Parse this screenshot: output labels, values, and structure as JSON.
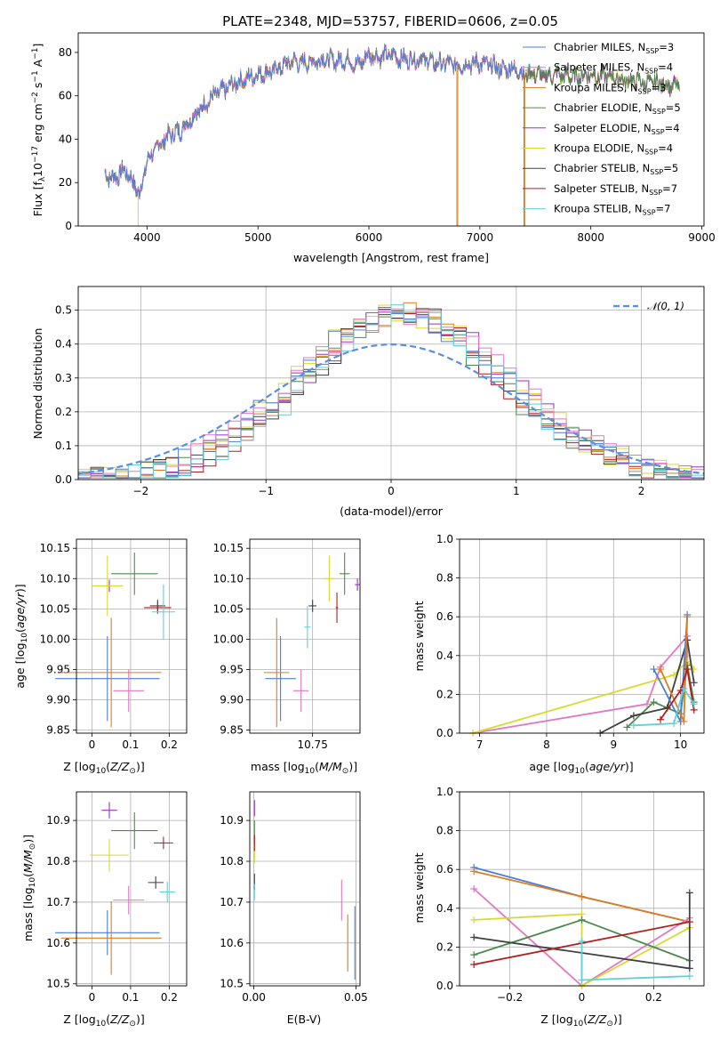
{
  "title": "PLATE=2348, MJD=53757, FIBERID=0606, z=0.05",
  "colors": {
    "chabrier_miles": "#4a7fd6",
    "salpeter_miles": "#e377c2",
    "kroupa_miles": "#e07b1f",
    "chabrier_elodie": "#4e8a4e",
    "salpeter_elodie": "#9b30c8",
    "kroupa_elodie": "#d9d934",
    "chabrier_stelib": "#404040",
    "salpeter_stelib": "#b21d1d",
    "kroupa_stelib": "#5fd0d8",
    "gauss": "#5b8ee0"
  },
  "legend": [
    {
      "key": "chabrier_miles",
      "imf": "Chabrier",
      "lib": "MILES",
      "n": "3"
    },
    {
      "key": "salpeter_miles",
      "imf": "Salpeter",
      "lib": "MILES",
      "n": "4"
    },
    {
      "key": "kroupa_miles",
      "imf": "Kroupa",
      "lib": "MILES",
      "n": "3"
    },
    {
      "key": "chabrier_elodie",
      "imf": "Chabrier",
      "lib": "ELODIE",
      "n": "5"
    },
    {
      "key": "salpeter_elodie",
      "imf": "Salpeter",
      "lib": "ELODIE",
      "n": "4"
    },
    {
      "key": "kroupa_elodie",
      "imf": "Kroupa",
      "lib": "ELODIE",
      "n": "4"
    },
    {
      "key": "chabrier_stelib",
      "imf": "Chabrier",
      "lib": "STELIB",
      "n": "5"
    },
    {
      "key": "salpeter_stelib",
      "imf": "Salpeter",
      "lib": "STELIB",
      "n": "7"
    },
    {
      "key": "kroupa_stelib",
      "imf": "Kroupa",
      "lib": "STELIB",
      "n": "7"
    }
  ],
  "chart_data": [
    {
      "id": "spectrum",
      "type": "line",
      "xlabel": "wavelength [Angstrom, rest frame]",
      "ylabel": "Flux [f_λ 10^-17 erg cm^-2 s^-1 A^-1]",
      "xlim": [
        3380,
        9020
      ],
      "ylim": [
        0,
        89
      ],
      "xticks": [
        4000,
        5000,
        6000,
        7000,
        8000,
        9000
      ],
      "yticks": [
        0,
        20,
        40,
        60,
        80
      ],
      "grid": false,
      "legend_placement": "upper-right",
      "x": [
        3620,
        3700,
        3800,
        3900,
        3930,
        4000,
        4100,
        4200,
        4300,
        4400,
        4500,
        4600,
        4700,
        4800,
        4900,
        5000,
        5100,
        5200,
        5300,
        5400,
        5500,
        5600,
        5700,
        5800,
        5900,
        6000,
        6100,
        6200,
        6300,
        6400,
        6500,
        6600,
        6700,
        6800,
        6900,
        7000,
        7100,
        7200,
        7300,
        7400,
        7500,
        7600,
        7700,
        7800,
        7900,
        8000,
        8100,
        8200,
        8300,
        8400,
        8500,
        8600,
        8700,
        8800
      ],
      "flux": [
        24,
        22,
        26,
        18,
        14,
        30,
        37,
        42,
        44,
        50,
        55,
        60,
        63,
        66,
        68,
        70,
        71,
        73,
        76,
        75,
        76,
        77,
        76,
        77,
        74,
        79,
        78,
        79,
        77,
        77,
        77,
        75,
        75,
        74,
        75,
        75,
        74,
        72,
        73,
        70,
        70,
        69,
        70,
        69,
        69,
        70,
        69,
        69,
        67,
        67,
        66,
        66,
        65,
        64
      ]
    },
    {
      "id": "residuals",
      "type": "histogram",
      "xlabel": "(data-model)/error",
      "ylabel": "Normed distribution",
      "xlim": [
        -2.5,
        2.5
      ],
      "ylim": [
        0,
        0.57
      ],
      "xticks": [
        -2,
        -1,
        0,
        1,
        2
      ],
      "yticks": [
        0,
        0.1,
        0.2,
        0.3,
        0.4,
        0.5
      ],
      "grid": true,
      "legend_placement": "upper-right",
      "gauss_label": "𝒩(0, 1)"
    },
    {
      "id": "age_vs_Z",
      "type": "scatter",
      "xlabel": "Z [log10(Z/Z⊙)]",
      "ylabel": "age [log10(age/yr)]",
      "xlim": [
        -0.04,
        0.245
      ],
      "ylim": [
        9.845,
        10.165
      ],
      "xticks": [
        0,
        0.1,
        0.2
      ],
      "yticks": [
        9.85,
        9.9,
        9.95,
        10,
        10.05,
        10.1,
        10.15
      ],
      "points": [
        {
          "key": "chabrier_miles",
          "x": 0.04,
          "y": 9.935,
          "ex": 0.135,
          "ey": 0.07
        },
        {
          "key": "salpeter_miles",
          "x": 0.095,
          "y": 9.915,
          "ex": 0.04,
          "ey": 0.035
        },
        {
          "key": "kroupa_miles",
          "x": 0.05,
          "y": 9.945,
          "ex": 0.13,
          "ey": 0.09
        },
        {
          "key": "chabrier_elodie",
          "x": 0.11,
          "y": 10.108,
          "ex": 0.06,
          "ey": 0.035
        },
        {
          "key": "salpeter_elodie",
          "x": 0.045,
          "y": 10.088,
          "ex": 0.003,
          "ey": 0.01
        },
        {
          "key": "kroupa_elodie",
          "x": 0.04,
          "y": 10.088,
          "ex": 0.04,
          "ey": 0.05
        },
        {
          "key": "chabrier_stelib",
          "x": 0.17,
          "y": 10.055,
          "ex": 0.02,
          "ey": 0.01
        },
        {
          "key": "salpeter_stelib",
          "x": 0.17,
          "y": 10.052,
          "ex": 0.035,
          "ey": 0.01
        },
        {
          "key": "kroupa_stelib",
          "x": 0.185,
          "y": 10.045,
          "ex": 0.03,
          "ey": 0.045
        }
      ]
    },
    {
      "id": "age_vs_mass",
      "type": "scatter",
      "xlabel": "mass [log10(M/M⊙)]",
      "ylabel": "",
      "xlim": [
        10.505,
        10.935
      ],
      "ylim": [
        9.845,
        10.165
      ],
      "xticks": [
        10.5,
        10.75
      ],
      "yticks": [
        9.85,
        9.9,
        9.95,
        10,
        10.05,
        10.1,
        10.15
      ],
      "points": [
        {
          "key": "chabrier_miles",
          "x": 10.625,
          "y": 9.935,
          "ex": 0.06,
          "ey": 0.07
        },
        {
          "key": "salpeter_miles",
          "x": 10.705,
          "y": 9.915,
          "ex": 0.03,
          "ey": 0.035
        },
        {
          "key": "kroupa_miles",
          "x": 10.61,
          "y": 9.945,
          "ex": 0.05,
          "ey": 0.09
        },
        {
          "key": "chabrier_elodie",
          "x": 10.875,
          "y": 10.108,
          "ex": 0.02,
          "ey": 0.035
        },
        {
          "key": "salpeter_elodie",
          "x": 10.925,
          "y": 10.09,
          "ex": 0.01,
          "ey": 0.01
        },
        {
          "key": "kroupa_elodie",
          "x": 10.815,
          "y": 10.1,
          "ex": 0.02,
          "ey": 0.038
        },
        {
          "key": "chabrier_stelib",
          "x": 10.75,
          "y": 10.055,
          "ex": 0.015,
          "ey": 0.01
        },
        {
          "key": "salpeter_stelib",
          "x": 10.845,
          "y": 10.052,
          "ex": 0.005,
          "ey": 0.025
        },
        {
          "key": "kroupa_stelib",
          "x": 10.73,
          "y": 10.02,
          "ex": 0.012,
          "ey": 0.035
        }
      ]
    },
    {
      "id": "weight_vs_age",
      "type": "line",
      "xlabel": "age [log10(age/yr)]",
      "ylabel": "mass weight",
      "xlim": [
        6.7,
        10.35
      ],
      "ylim": [
        0,
        1
      ],
      "xticks": [
        7,
        8,
        9,
        10
      ],
      "yticks": [
        0,
        0.2,
        0.4,
        0.6,
        0.8,
        1.0
      ],
      "grid": true,
      "series": [
        {
          "key": "salpeter_miles",
          "x": [
            6.9,
            9.5,
            9.7,
            10.1,
            10.1
          ],
          "y": [
            0.0,
            0.15,
            0.34,
            0.5,
            0.35
          ]
        },
        {
          "key": "kroupa_elodie",
          "x": [
            6.9,
            9.9,
            10.1,
            10.2
          ],
          "y": [
            0.0,
            0.3,
            0.37,
            0.33
          ]
        },
        {
          "key": "chabrier_elodie",
          "x": [
            9.2,
            9.6,
            10.0,
            10.1,
            10.2
          ],
          "y": [
            0.03,
            0.16,
            0.1,
            0.35,
            0.16
          ]
        },
        {
          "key": "chabrier_stelib",
          "x": [
            8.8,
            9.3,
            9.8,
            10.1,
            10.2
          ],
          "y": [
            0.0,
            0.09,
            0.13,
            0.48,
            0.26
          ]
        },
        {
          "key": "chabrier_miles",
          "x": [
            9.6,
            10.0,
            10.1
          ],
          "y": [
            0.33,
            0.06,
            0.61
          ]
        },
        {
          "key": "kroupa_miles",
          "x": [
            9.7,
            10.05,
            10.1
          ],
          "y": [
            0.33,
            0.06,
            0.6
          ]
        },
        {
          "key": "salpeter_stelib",
          "x": [
            9.7,
            10.0,
            10.1,
            10.2
          ],
          "y": [
            0.07,
            0.22,
            0.33,
            0.12
          ]
        },
        {
          "key": "kroupa_stelib",
          "x": [
            9.3,
            9.9,
            10.05,
            10.2
          ],
          "y": [
            0.04,
            0.05,
            0.23,
            0.15
          ]
        }
      ]
    },
    {
      "id": "mass_vs_Z",
      "type": "scatter",
      "xlabel": "Z [log10(Z/Z⊙)]",
      "ylabel": "mass [log10(M/M⊙)]",
      "xlim": [
        -0.04,
        0.245
      ],
      "ylim": [
        10.495,
        10.97
      ],
      "xticks": [
        0,
        0.1,
        0.2
      ],
      "yticks": [
        10.5,
        10.6,
        10.7,
        10.8,
        10.9
      ],
      "points": [
        {
          "key": "chabrier_miles",
          "x": 0.04,
          "y": 10.625,
          "ex": 0.135,
          "ey": 0.055
        },
        {
          "key": "salpeter_miles",
          "x": 0.095,
          "y": 10.705,
          "ex": 0.04,
          "ey": 0.035
        },
        {
          "key": "kroupa_miles",
          "x": 0.05,
          "y": 10.612,
          "ex": 0.13,
          "ey": 0.09
        },
        {
          "key": "chabrier_elodie",
          "x": 0.11,
          "y": 10.875,
          "ex": 0.06,
          "ey": 0.045
        },
        {
          "key": "salpeter_elodie",
          "x": 0.045,
          "y": 10.925,
          "ex": 0.02,
          "ey": 0.02
        },
        {
          "key": "kroupa_elodie",
          "x": 0.045,
          "y": 10.815,
          "ex": 0.05,
          "ey": 0.04
        },
        {
          "key": "chabrier_stelib",
          "x": 0.165,
          "y": 10.748,
          "ex": 0.02,
          "ey": 0.015
        },
        {
          "key": "salpeter_stelib",
          "x": 0.185,
          "y": 10.845,
          "ex": 0.025,
          "ey": 0.015
        },
        {
          "key": "kroupa_stelib",
          "x": 0.195,
          "y": 10.725,
          "ex": 0.02,
          "ey": 0.025
        }
      ]
    },
    {
      "id": "mass_vs_ebv",
      "type": "scatter",
      "xlabel": "E(B-V)",
      "ylabel": "",
      "xlim": [
        -0.002,
        0.052
      ],
      "ylim": [
        10.495,
        10.97
      ],
      "xticks": [
        0,
        0.05
      ],
      "yticks": [
        10.5,
        10.6,
        10.7,
        10.8,
        10.9
      ],
      "points": [
        {
          "key": "chabrier_miles",
          "x": 0.0495,
          "y": 10.6,
          "ex": 0,
          "ey": 0.09
        },
        {
          "key": "salpeter_miles",
          "x": 0.043,
          "y": 10.705,
          "ex": 0,
          "ey": 0.05
        },
        {
          "key": "kroupa_miles",
          "x": 0.046,
          "y": 10.6,
          "ex": 0,
          "ey": 0.07
        },
        {
          "key": "chabrier_elodie",
          "x": 0.0003,
          "y": 10.87,
          "ex": 0,
          "ey": 0.03
        },
        {
          "key": "salpeter_elodie",
          "x": 0.0003,
          "y": 10.93,
          "ex": 0,
          "ey": 0.02
        },
        {
          "key": "kroupa_elodie",
          "x": 0.0003,
          "y": 10.815,
          "ex": 0,
          "ey": 0.02
        },
        {
          "key": "chabrier_stelib",
          "x": 0.0003,
          "y": 10.75,
          "ex": 0,
          "ey": 0.02
        },
        {
          "key": "salpeter_stelib",
          "x": 0.0003,
          "y": 10.845,
          "ex": 0,
          "ey": 0.02
        },
        {
          "key": "kroupa_stelib",
          "x": 0.0003,
          "y": 10.725,
          "ex": 0,
          "ey": 0.02
        }
      ]
    },
    {
      "id": "weight_vs_Z",
      "type": "line",
      "xlabel": "Z [log10(Z/Z⊙)]",
      "ylabel": "mass weight",
      "xlim": [
        -0.34,
        0.34
      ],
      "ylim": [
        0,
        1
      ],
      "xticks": [
        -0.2,
        0,
        0.2
      ],
      "yticks": [
        0,
        0.2,
        0.4,
        0.6,
        0.8,
        1.0
      ],
      "grid": true,
      "series": [
        {
          "key": "chabrier_miles",
          "x": [
            -0.3,
            0,
            0.3
          ],
          "y": [
            0.61,
            0.46,
            0.33
          ]
        },
        {
          "key": "kroupa_miles",
          "x": [
            -0.3,
            0,
            0.3
          ],
          "y": [
            0.59,
            0.46,
            0.33
          ]
        },
        {
          "key": "salpeter_miles",
          "x": [
            -0.3,
            0,
            0.3
          ],
          "y": [
            0.5,
            0.0,
            0.35
          ]
        },
        {
          "key": "kroupa_elodie",
          "x": [
            -0.3,
            0,
            0,
            0.3
          ],
          "y": [
            0.34,
            0.37,
            0.0,
            0.3
          ]
        },
        {
          "key": "chabrier_elodie",
          "x": [
            -0.3,
            0,
            0.3
          ],
          "y": [
            0.16,
            0.34,
            0.13
          ]
        },
        {
          "key": "chabrier_stelib",
          "x": [
            -0.3,
            0.3,
            0.3
          ],
          "y": [
            0.25,
            0.09,
            0.48
          ]
        },
        {
          "key": "salpeter_stelib",
          "x": [
            -0.3,
            0,
            0.3
          ],
          "y": [
            0.11,
            0.22,
            0.33
          ]
        },
        {
          "key": "kroupa_stelib",
          "x": [
            0,
            0,
            0.3
          ],
          "y": [
            0.23,
            0.03,
            0.05
          ]
        }
      ]
    }
  ]
}
